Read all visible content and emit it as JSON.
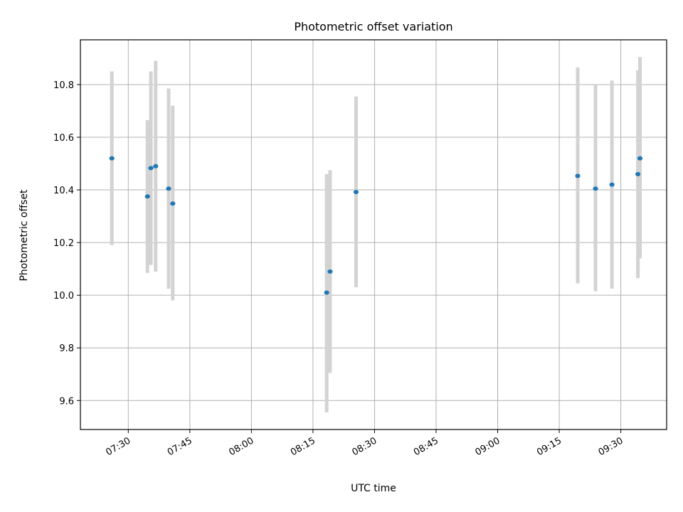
{
  "chart_data": {
    "type": "scatter",
    "title": "Photometric offset variation",
    "xlabel": "UTC time",
    "ylabel": "Photometric offset",
    "x_tick_labels": [
      "07:30",
      "07:45",
      "08:00",
      "08:15",
      "08:30",
      "08:45",
      "09:00",
      "09:15",
      "09:30"
    ],
    "y_tick_labels": [
      "9.6",
      "9.8",
      "10.0",
      "10.2",
      "10.4",
      "10.6",
      "10.8"
    ],
    "xlim": [
      "07:18:20",
      "09:41:10"
    ],
    "ylim": [
      9.49,
      10.97
    ],
    "grid": true,
    "points": [
      {
        "x": "07:26:00",
        "y": 10.52,
        "ylow": 10.19,
        "yhigh": 10.85
      },
      {
        "x": "07:34:40",
        "y": 10.375,
        "ylow": 10.085,
        "yhigh": 10.665
      },
      {
        "x": "07:35:30",
        "y": 10.483,
        "ylow": 10.115,
        "yhigh": 10.85
      },
      {
        "x": "07:36:40",
        "y": 10.49,
        "ylow": 10.09,
        "yhigh": 10.89
      },
      {
        "x": "07:39:50",
        "y": 10.405,
        "ylow": 10.025,
        "yhigh": 10.785
      },
      {
        "x": "07:40:50",
        "y": 10.348,
        "ylow": 9.98,
        "yhigh": 10.72
      },
      {
        "x": "08:18:20",
        "y": 10.01,
        "ylow": 9.555,
        "yhigh": 10.46
      },
      {
        "x": "08:19:10",
        "y": 10.09,
        "ylow": 9.705,
        "yhigh": 10.475
      },
      {
        "x": "08:25:30",
        "y": 10.392,
        "ylow": 10.03,
        "yhigh": 10.755
      },
      {
        "x": "09:19:30",
        "y": 10.453,
        "ylow": 10.045,
        "yhigh": 10.865
      },
      {
        "x": "09:23:50",
        "y": 10.405,
        "ylow": 10.015,
        "yhigh": 10.8
      },
      {
        "x": "09:27:50",
        "y": 10.42,
        "ylow": 10.025,
        "yhigh": 10.815
      },
      {
        "x": "09:34:10",
        "y": 10.46,
        "ylow": 10.065,
        "yhigh": 10.855
      },
      {
        "x": "09:34:40",
        "y": 10.52,
        "ylow": 10.14,
        "yhigh": 10.905
      }
    ],
    "colors": {
      "marker": "#1f77b4",
      "errorbar": "#d3d3d3",
      "grid": "#b0b0b0",
      "axes": "#000000"
    }
  }
}
